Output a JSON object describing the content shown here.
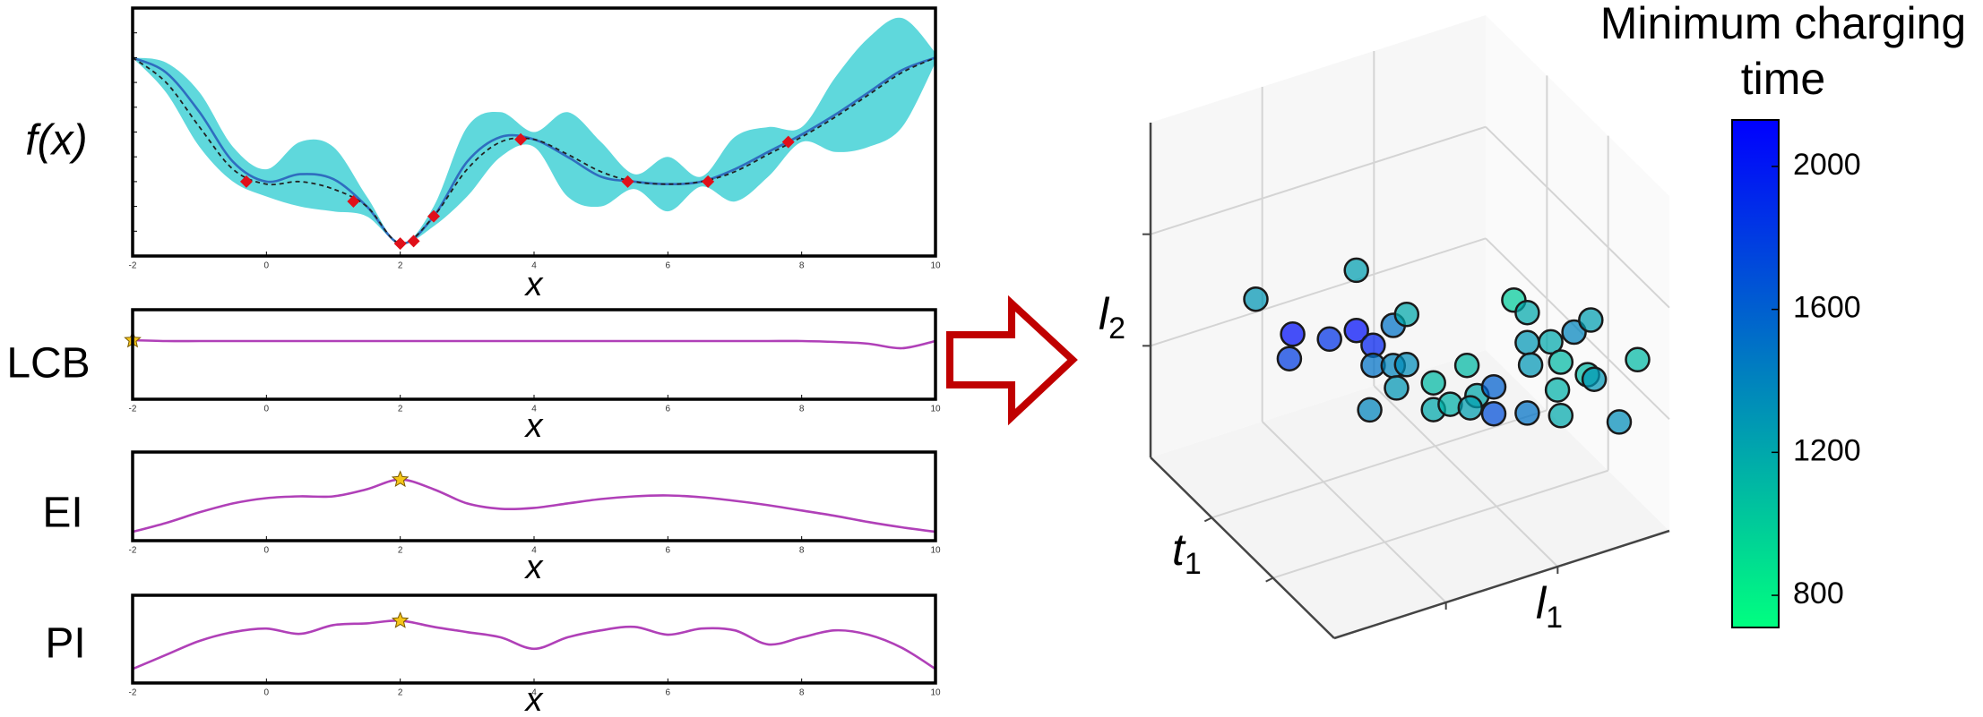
{
  "chart_data": [
    {
      "type": "line",
      "ylabel": "f(x)",
      "xlabel": "x",
      "x": [
        -2,
        -1.5,
        -1,
        -0.5,
        0,
        0.5,
        1,
        1.5,
        2,
        2.5,
        3,
        3.5,
        4,
        4.5,
        5,
        5.5,
        6,
        6.5,
        7,
        7.5,
        8,
        8.5,
        9,
        9.5,
        10
      ],
      "band": {
        "color": "#5fd8dc",
        "upper": [
          0.8,
          0.78,
          0.66,
          0.44,
          0.35,
          0.46,
          0.44,
          0.24,
          0.05,
          0.2,
          0.52,
          0.58,
          0.5,
          0.58,
          0.46,
          0.33,
          0.4,
          0.32,
          0.48,
          0.52,
          0.52,
          0.72,
          0.88,
          0.96,
          0.82
        ],
        "lower": [
          0.8,
          0.66,
          0.44,
          0.3,
          0.24,
          0.2,
          0.18,
          0.16,
          0.05,
          0.12,
          0.24,
          0.4,
          0.44,
          0.24,
          0.2,
          0.27,
          0.18,
          0.28,
          0.22,
          0.32,
          0.46,
          0.42,
          0.44,
          0.52,
          0.78
        ]
      },
      "series": [
        {
          "color": "#2f6dbf",
          "dashed": false,
          "values": [
            0.8,
            0.74,
            0.58,
            0.38,
            0.3,
            0.33,
            0.31,
            0.2,
            0.05,
            0.16,
            0.38,
            0.48,
            0.47,
            0.4,
            0.32,
            0.3,
            0.29,
            0.3,
            0.35,
            0.42,
            0.49,
            0.57,
            0.66,
            0.75,
            0.8
          ]
        },
        {
          "color": "#222222",
          "dashed": true,
          "values": [
            0.8,
            0.7,
            0.52,
            0.35,
            0.29,
            0.3,
            0.27,
            0.2,
            0.05,
            0.16,
            0.35,
            0.46,
            0.47,
            0.41,
            0.34,
            0.3,
            0.29,
            0.3,
            0.34,
            0.41,
            0.48,
            0.56,
            0.65,
            0.74,
            0.8
          ]
        }
      ],
      "points": {
        "color": "#e0101a",
        "x": [
          -0.3,
          1.3,
          2.0,
          2.2,
          2.5,
          3.8,
          5.4,
          6.6,
          7.8
        ],
        "y": [
          0.3,
          0.22,
          0.05,
          0.06,
          0.16,
          0.47,
          0.3,
          0.3,
          0.46
        ]
      },
      "xlim": [
        -2,
        10
      ],
      "ylim": [
        0,
        1
      ],
      "xticks": [
        -2,
        0,
        2,
        4,
        6,
        8,
        10
      ]
    },
    {
      "type": "line",
      "ylabel": "LCB",
      "xlabel": "x",
      "x": [
        -2,
        -1.5,
        -1,
        -0.5,
        0,
        0.5,
        1,
        1.5,
        2,
        2.5,
        3,
        3.5,
        4,
        4.5,
        5,
        5.5,
        6,
        6.5,
        7,
        7.5,
        8,
        8.5,
        9,
        9.5,
        10
      ],
      "series": [
        {
          "color": "#b040b8",
          "values": [
            0.66,
            0.65,
            0.65,
            0.65,
            0.65,
            0.65,
            0.65,
            0.65,
            0.65,
            0.65,
            0.65,
            0.65,
            0.65,
            0.65,
            0.65,
            0.65,
            0.65,
            0.65,
            0.65,
            0.65,
            0.65,
            0.64,
            0.62,
            0.57,
            0.65
          ]
        }
      ],
      "marker": {
        "color": "#f5c518",
        "x": -2,
        "y": 0.66
      },
      "xlim": [
        -2,
        10
      ],
      "ylim": [
        0,
        1
      ],
      "xticks": [
        -2,
        0,
        2,
        4,
        6,
        8,
        10
      ]
    },
    {
      "type": "line",
      "ylabel": "EI",
      "xlabel": "x",
      "x": [
        -2,
        -1.5,
        -1,
        -0.5,
        0,
        0.5,
        1,
        1.5,
        2,
        2.5,
        3,
        3.5,
        4,
        4.5,
        5,
        5.5,
        6,
        6.5,
        7,
        7.5,
        8,
        8.5,
        9,
        9.5,
        10
      ],
      "series": [
        {
          "color": "#b040b8",
          "values": [
            0.1,
            0.2,
            0.32,
            0.42,
            0.48,
            0.5,
            0.5,
            0.58,
            0.69,
            0.58,
            0.42,
            0.36,
            0.37,
            0.42,
            0.47,
            0.5,
            0.51,
            0.49,
            0.45,
            0.4,
            0.34,
            0.28,
            0.21,
            0.15,
            0.1
          ]
        }
      ],
      "marker": {
        "color": "#f5c518",
        "x": 2,
        "y": 0.69
      },
      "xlim": [
        -2,
        10
      ],
      "ylim": [
        0,
        1
      ],
      "xticks": [
        -2,
        0,
        2,
        4,
        6,
        8,
        10
      ]
    },
    {
      "type": "line",
      "ylabel": "PI",
      "xlabel": "x",
      "x": [
        -2,
        -1.5,
        -1,
        -0.5,
        0,
        0.5,
        1,
        1.5,
        2,
        2.5,
        3,
        3.5,
        4,
        4.5,
        5,
        5.5,
        6,
        6.5,
        7,
        7.5,
        8,
        8.5,
        9,
        9.5,
        10
      ],
      "series": [
        {
          "color": "#b040b8",
          "values": [
            0.16,
            0.32,
            0.48,
            0.58,
            0.62,
            0.56,
            0.66,
            0.68,
            0.71,
            0.64,
            0.58,
            0.52,
            0.39,
            0.52,
            0.6,
            0.64,
            0.55,
            0.62,
            0.6,
            0.44,
            0.52,
            0.6,
            0.55,
            0.4,
            0.16
          ]
        }
      ],
      "marker": {
        "color": "#f5c518",
        "x": 2,
        "y": 0.71
      },
      "xlim": [
        -2,
        10
      ],
      "ylim": [
        0,
        1
      ],
      "xticks": [
        -2,
        0,
        2,
        4,
        6,
        8,
        10
      ]
    },
    {
      "type": "scatter3d",
      "xlabel": {
        "text": "l",
        "subscript": "1"
      },
      "ylabel": {
        "text": "t",
        "subscript": "1"
      },
      "zlabel": {
        "text": "l",
        "subscript": "2"
      },
      "xlim": [
        0,
        1
      ],
      "ylim": [
        0,
        1
      ],
      "zlim": [
        0,
        1
      ],
      "x": [
        0.04,
        0.34,
        0.15,
        0.14,
        0.26,
        0.34,
        0.39,
        0.45,
        0.49,
        0.39,
        0.45,
        0.49,
        0.46,
        0.38,
        0.57,
        0.57,
        0.62,
        0.67,
        0.7,
        0.68,
        0.75,
        0.75,
        0.81,
        0.85,
        0.85,
        0.92,
        0.95,
        0.94,
        0.95,
        0.86,
        0.88,
        0.93,
        0.92,
        0.85,
        0.96,
        0.96,
        0.94
      ],
      "y": [
        0.5,
        0.5,
        0.5,
        0.5,
        0.5,
        0.5,
        0.5,
        0.5,
        0.5,
        0.5,
        0.5,
        0.5,
        0.5,
        0.5,
        0.5,
        0.5,
        0.5,
        0.5,
        0.5,
        0.5,
        0.5,
        0.5,
        0.5,
        0.5,
        0.5,
        0.5,
        0.5,
        0.5,
        0.5,
        0.5,
        0.3,
        0.3,
        0.3,
        0.5,
        0.2,
        0.1,
        0.3
      ],
      "z": [
        0.73,
        0.72,
        0.59,
        0.52,
        0.54,
        0.54,
        0.48,
        0.52,
        0.54,
        0.42,
        0.4,
        0.39,
        0.33,
        0.29,
        0.31,
        0.23,
        0.23,
        0.33,
        0.23,
        0.2,
        0.24,
        0.16,
        0.48,
        0.43,
        0.34,
        0.32,
        0.25,
        0.17,
        0.09,
        0.27,
        0.47,
        0.49,
        0.33,
        0.13,
        0.23,
        0.47,
        0.31
      ],
      "values": [
        1300,
        1250,
        2050,
        1800,
        1850,
        2050,
        1950,
        1500,
        1200,
        1500,
        1400,
        1350,
        1300,
        1400,
        1100,
        1200,
        1150,
        1100,
        1200,
        1250,
        1600,
        1700,
        1000,
        1200,
        1300,
        1200,
        1100,
        1150,
        1200,
        1300,
        1400,
        1250,
        1100,
        1500,
        1350,
        1100,
        1300
      ],
      "colormap": "winter_r",
      "clim": [
        710,
        2130
      ],
      "colorbar_ticks": [
        800,
        1200,
        1600,
        2000
      ],
      "colorbar_label": [
        "Minimum charging",
        "time"
      ]
    }
  ]
}
